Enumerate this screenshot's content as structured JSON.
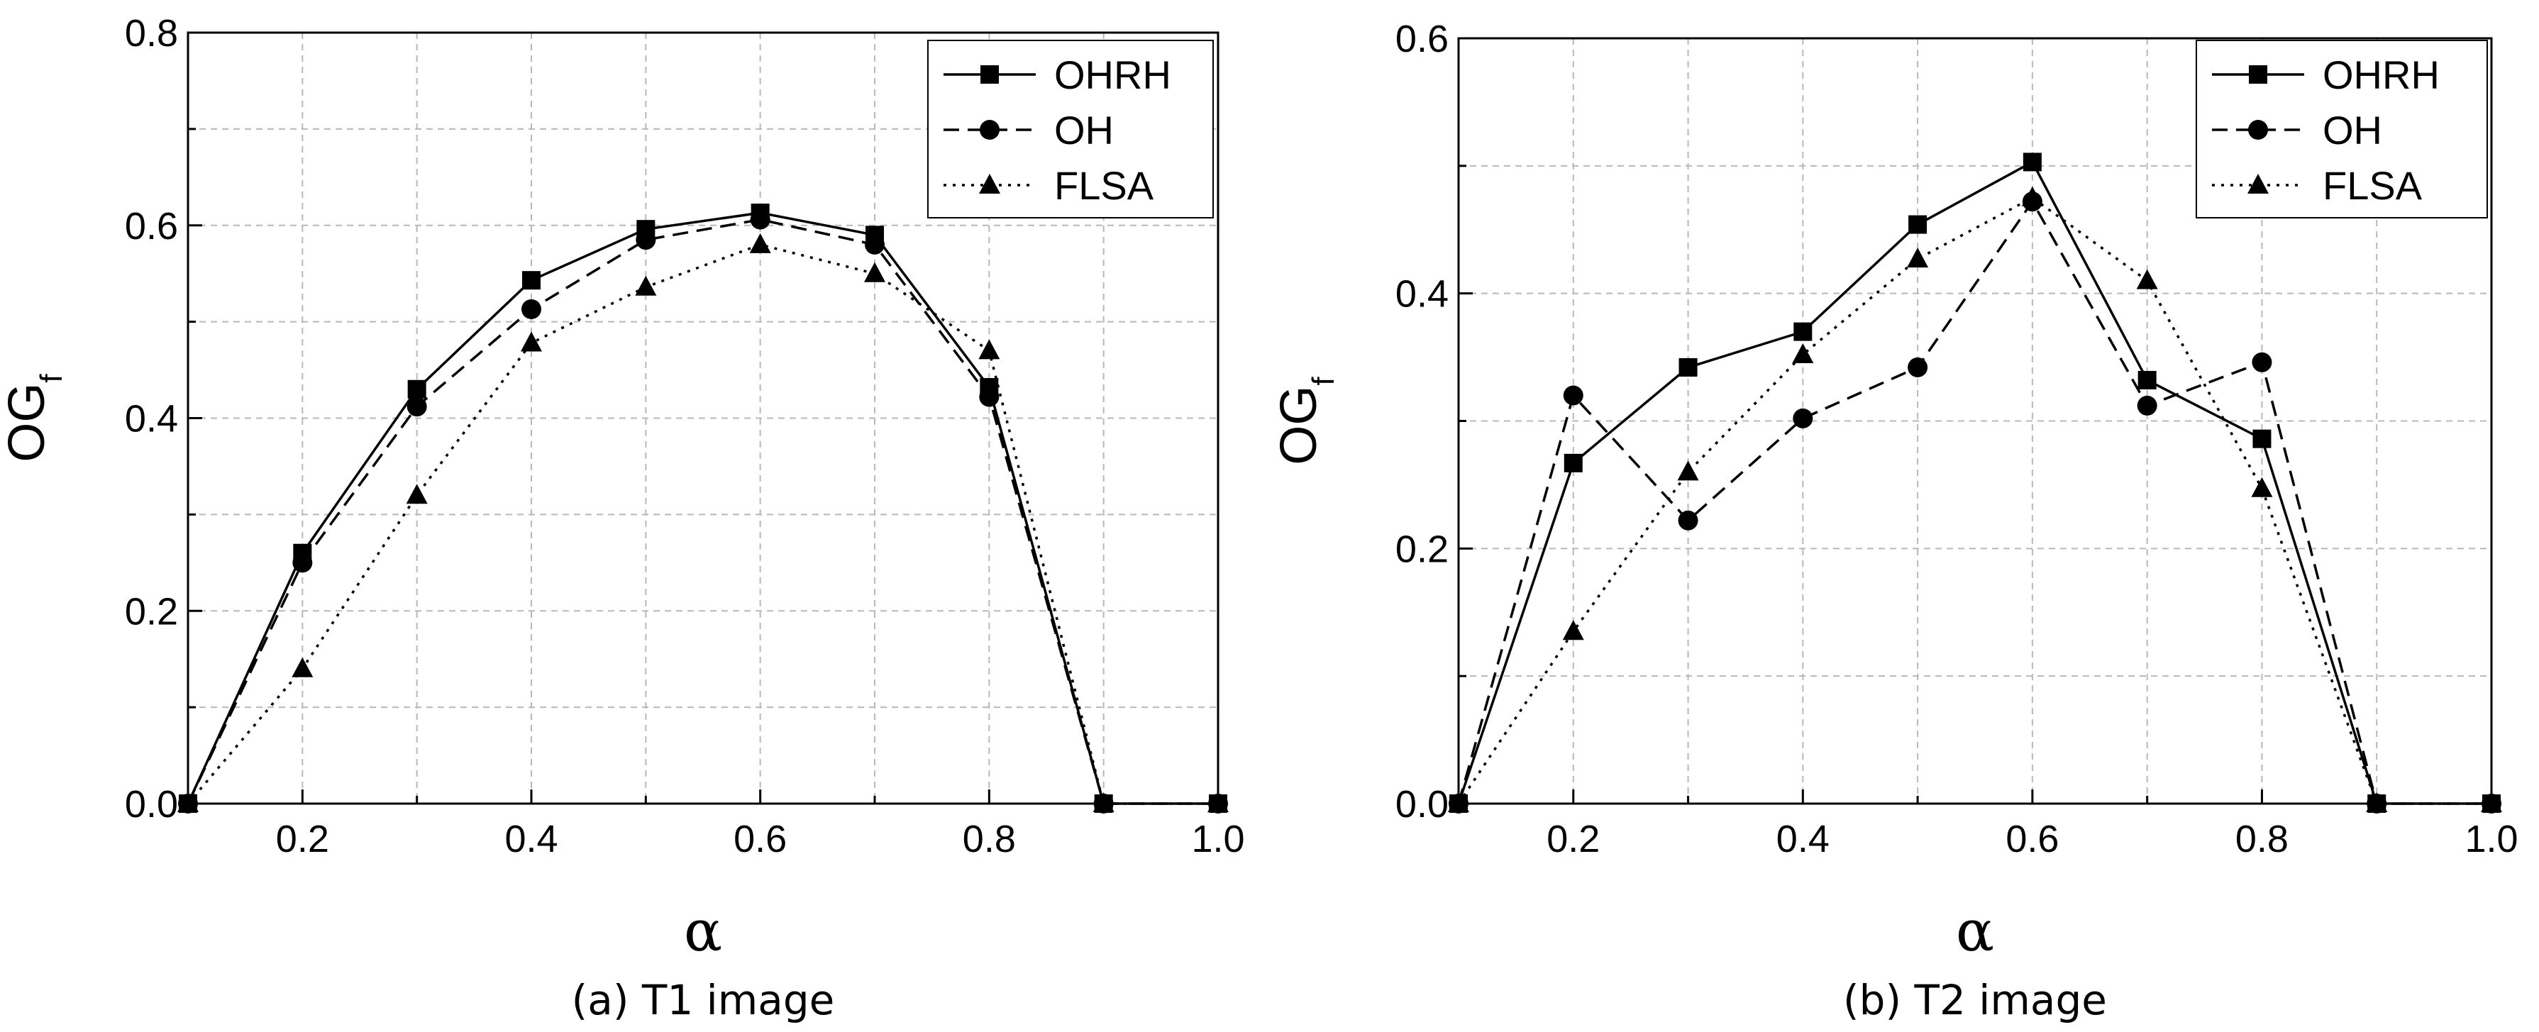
{
  "chart_data": [
    {
      "type": "line",
      "caption": "(a) T1 image",
      "xlabel": "α",
      "ylabel": "OG",
      "ylabel_subscript": "f",
      "xlim": [
        0.1,
        1.0
      ],
      "ylim": [
        0.0,
        0.8
      ],
      "xticks": [
        0.2,
        0.4,
        0.6,
        0.8,
        1.0
      ],
      "yticks": [
        0.0,
        0.2,
        0.4,
        0.6,
        0.8
      ],
      "xtick_labels": [
        "0.2",
        "0.4",
        "0.6",
        "0.8",
        "1.0"
      ],
      "ytick_labels": [
        "0.0",
        "0.2",
        "0.4",
        "0.6",
        "0.8"
      ],
      "grid": true,
      "legend_position": "top-right",
      "x": [
        0.1,
        0.2,
        0.3,
        0.4,
        0.5,
        0.6,
        0.7,
        0.8,
        0.9,
        1.0
      ],
      "series": [
        {
          "name": "OHRH",
          "style": "solid",
          "marker": "square",
          "values": [
            0.0,
            0.26,
            0.43,
            0.543,
            0.596,
            0.613,
            0.59,
            0.432,
            0.0,
            0.0
          ]
        },
        {
          "name": "OH",
          "style": "dashed",
          "marker": "circle",
          "values": [
            0.0,
            0.25,
            0.412,
            0.513,
            0.585,
            0.606,
            0.58,
            0.422,
            0.0,
            0.0
          ]
        },
        {
          "name": "FLSA",
          "style": "dotted",
          "marker": "triangle",
          "values": [
            0.0,
            0.14,
            0.32,
            0.478,
            0.536,
            0.58,
            0.55,
            0.47,
            0.0,
            0.0
          ]
        }
      ]
    },
    {
      "type": "line",
      "caption": "(b) T2 image",
      "xlabel": "α",
      "ylabel": "OG",
      "ylabel_subscript": "f",
      "xlim": [
        0.1,
        1.0
      ],
      "ylim": [
        0.0,
        0.6
      ],
      "xticks": [
        0.2,
        0.4,
        0.6,
        0.8,
        1.0
      ],
      "yticks": [
        0.0,
        0.2,
        0.4,
        0.6
      ],
      "xtick_labels": [
        "0.2",
        "0.4",
        "0.6",
        "0.8",
        "1.0"
      ],
      "ytick_labels": [
        "0.0",
        "0.2",
        "0.4",
        "0.6"
      ],
      "grid": true,
      "legend_position": "top-right",
      "x": [
        0.1,
        0.2,
        0.3,
        0.4,
        0.5,
        0.6,
        0.7,
        0.8,
        0.9,
        1.0
      ],
      "series": [
        {
          "name": "OHRH",
          "style": "solid",
          "marker": "square",
          "values": [
            0.0,
            0.267,
            0.342,
            0.37,
            0.454,
            0.503,
            0.332,
            0.286,
            0.0,
            0.0
          ]
        },
        {
          "name": "OH",
          "style": "dashed",
          "marker": "circle",
          "values": [
            0.0,
            0.32,
            0.222,
            0.302,
            0.342,
            0.472,
            0.312,
            0.346,
            0.0,
            0.0
          ]
        },
        {
          "name": "FLSA",
          "style": "dotted",
          "marker": "triangle",
          "values": [
            0.0,
            0.135,
            0.26,
            0.352,
            0.427,
            0.475,
            0.41,
            0.247,
            0.0,
            0.0
          ]
        }
      ]
    }
  ]
}
